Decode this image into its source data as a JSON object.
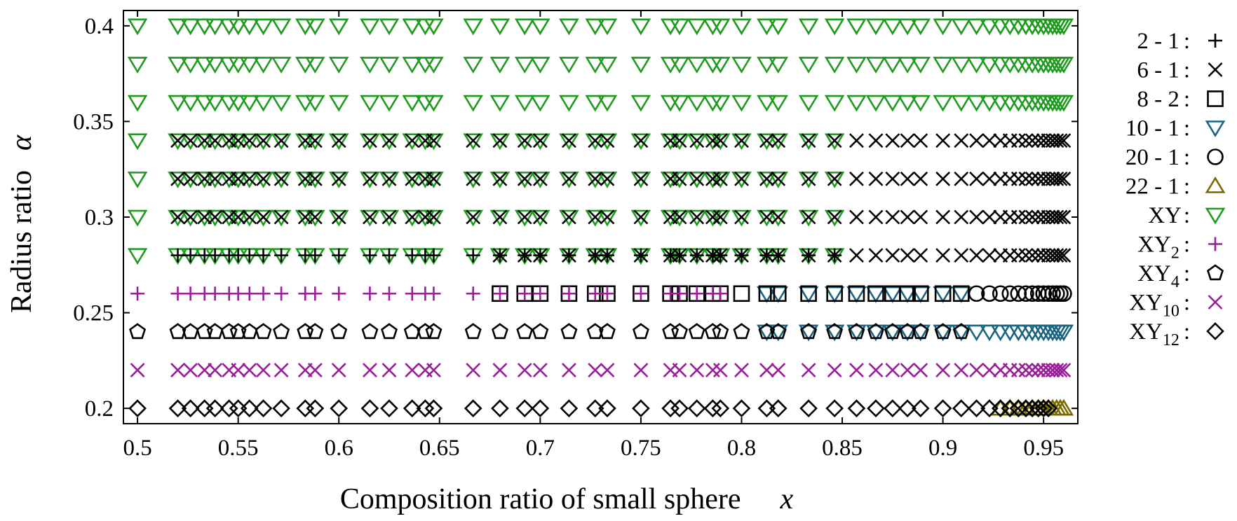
{
  "chart_data": {
    "type": "scatter",
    "title": "",
    "xlabel": "Composition ratio of small sphere",
    "xlabel_var": "x",
    "ylabel": "Radius ratio",
    "ylabel_var": "α",
    "xlim": [
      0.493,
      0.967
    ],
    "ylim": [
      0.192,
      0.408
    ],
    "xticks": [
      "0.5",
      "0.55",
      "0.6",
      "0.65",
      "0.7",
      "0.75",
      "0.8",
      "0.85",
      "0.9",
      "0.95"
    ],
    "yticks": [
      "0.2",
      "0.25",
      "0.3",
      "0.35",
      "0.4"
    ],
    "x_grid": [
      0.5,
      0.52,
      0.5263,
      0.5333,
      0.5385,
      0.5455,
      0.55,
      0.5556,
      0.5625,
      0.5714,
      0.5833,
      0.5882,
      0.6,
      0.6154,
      0.625,
      0.6364,
      0.6429,
      0.6471,
      0.6667,
      0.68,
      0.6923,
      0.7,
      0.7143,
      0.7273,
      0.7333,
      0.75,
      0.7647,
      0.7692,
      0.7778,
      0.7857,
      0.7895,
      0.8,
      0.8125,
      0.8182,
      0.8333,
      0.8462,
      0.8571,
      0.8667,
      0.875,
      0.8824,
      0.8889,
      0.9,
      0.9091,
      0.9167,
      0.9231,
      0.9286,
      0.9333,
      0.9375,
      0.9412,
      0.9444,
      0.9474,
      0.95,
      0.9524,
      0.9545,
      0.9565,
      0.9583,
      0.96
    ],
    "legend_position": "right, outside",
    "legend": [
      {
        "id": "s2_1",
        "name": "2 - 1",
        "sub": "",
        "color": "#000000",
        "marker": "plus"
      },
      {
        "id": "s6_1",
        "name": "6 - 1",
        "sub": "",
        "color": "#000000",
        "marker": "cross"
      },
      {
        "id": "s8_2",
        "name": "8 - 2",
        "sub": "",
        "color": "#000000",
        "marker": "square"
      },
      {
        "id": "s10_1",
        "name": "10 - 1",
        "sub": "",
        "color": "#1a6480",
        "marker": "triangle-down"
      },
      {
        "id": "s20_1",
        "name": "20 - 1",
        "sub": "",
        "color": "#000000",
        "marker": "circle"
      },
      {
        "id": "s22_1",
        "name": "22 - 1",
        "sub": "",
        "color": "#7a6a00",
        "marker": "triangle-up"
      },
      {
        "id": "xy",
        "name": "XY",
        "sub": "",
        "color": "#1e9a1e",
        "marker": "triangle-down"
      },
      {
        "id": "xy2",
        "name": "XY",
        "sub": "2",
        "color": "#9a1e9a",
        "marker": "plus"
      },
      {
        "id": "xy4",
        "name": "XY",
        "sub": "4",
        "color": "#000000",
        "marker": "pentagon"
      },
      {
        "id": "xy10",
        "name": "XY",
        "sub": "10",
        "color": "#9a1e9a",
        "marker": "cross"
      },
      {
        "id": "xy12",
        "name": "XY",
        "sub": "12",
        "color": "#000000",
        "marker": "diamond"
      }
    ],
    "series": [
      {
        "id": "xy",
        "name": "XY",
        "y_values": [
          0.28,
          0.3,
          0.32,
          0.34,
          0.36,
          0.38,
          0.4
        ],
        "x_from": 0.5,
        "x_to": 0.96,
        "note": "x = 0.5 to 0.8462 at alpha 0.28-0.34; x = 0.5 to 0.96 at alpha 0.36-0.40"
      },
      {
        "id": "s6_1",
        "name": "6 - 1",
        "y_values": [
          0.28,
          0.3,
          0.32,
          0.34
        ],
        "x_from": 0.52,
        "x_to": 0.96,
        "note": "at alpha 0.28 only for x >= 0.68"
      },
      {
        "id": "s2_1",
        "name": "2 - 1",
        "y_values": [
          0.28
        ],
        "x_from": 0.52,
        "x_to": 0.8462
      },
      {
        "id": "xy2",
        "name": "XY2",
        "y_values": [
          0.26
        ],
        "x_from": 0.5,
        "x_to": 0.7895
      },
      {
        "id": "s8_2",
        "name": "8 - 2",
        "y_values": [
          0.26
        ],
        "x_from": 0.68,
        "x_to": 0.9091
      },
      {
        "id": "s10_1",
        "name": "10 - 1",
        "y_values": [
          0.24,
          0.26
        ],
        "x_from": 0.8125,
        "x_to": 0.96
      },
      {
        "id": "s20_1",
        "name": "20 - 1",
        "y_values": [
          0.26
        ],
        "x_from": 0.9167,
        "x_to": 0.96
      },
      {
        "id": "xy4",
        "name": "XY4",
        "y_values": [
          0.24
        ],
        "x_from": 0.5,
        "x_to": 0.9091
      },
      {
        "id": "xy10",
        "name": "XY10",
        "y_values": [
          0.22
        ],
        "x_from": 0.5,
        "x_to": 0.96
      },
      {
        "id": "xy12",
        "name": "XY12",
        "y_values": [
          0.2
        ],
        "x_from": 0.5,
        "x_to": 0.9524
      },
      {
        "id": "s22_1",
        "name": "22 - 1",
        "y_values": [
          0.2
        ],
        "x_from": 0.9286,
        "x_to": 0.96
      }
    ]
  }
}
